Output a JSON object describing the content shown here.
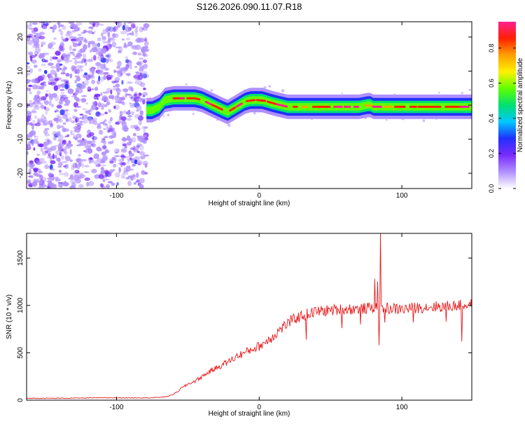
{
  "page_title": "S126.2026.090.11.07.R18",
  "chart_data": [
    {
      "type": "heatmap",
      "name": "spectrogram",
      "xlabel": "Height of straight line (km)",
      "ylabel": "Frequency (Hz)",
      "xlim": [
        -163,
        149
      ],
      "ylim": [
        -24.5,
        24.5
      ],
      "x_ticks": [
        -100,
        0,
        100
      ],
      "y_ticks": [
        -20,
        -10,
        0,
        10,
        20
      ],
      "noise_region": {
        "x_from": -163,
        "x_to": -79,
        "amplitude_range": [
          0.05,
          0.3
        ]
      },
      "signal_region_x_from": -79,
      "signal_track": {
        "x": [
          -79,
          -75,
          -70,
          -66,
          -60,
          -55,
          -50,
          -45,
          -40,
          -35,
          -30,
          -25,
          -22,
          -18,
          -14,
          -10,
          -6,
          -2,
          2,
          6,
          10,
          15,
          20,
          30,
          40,
          50,
          60,
          70,
          76,
          78,
          80,
          90,
          100,
          110,
          120,
          130,
          140,
          149
        ],
        "y": [
          -1.5,
          -1.5,
          -0.5,
          1.5,
          2.0,
          2.0,
          2.0,
          2.0,
          1.5,
          0.5,
          -0.5,
          -1.5,
          -2.0,
          -1.0,
          0.0,
          1.0,
          1.5,
          1.5,
          1.5,
          1.0,
          0.5,
          0.0,
          -0.5,
          -0.5,
          -0.5,
          -0.5,
          -0.5,
          -0.5,
          0.0,
          0.0,
          -0.5,
          -0.5,
          -0.5,
          -0.5,
          -0.5,
          -0.5,
          -0.5,
          -0.5
        ]
      },
      "colorbar": {
        "label": "Normalized spectral amplitude",
        "range": [
          0.0,
          0.95
        ],
        "ticks": [
          0.0,
          0.2,
          0.4,
          0.6,
          0.8
        ],
        "tick_labels": [
          "0.0",
          "0.2",
          "0.4",
          "0.6",
          "0.8"
        ],
        "colors": [
          "#ffffff",
          "#b090ff",
          "#7a2cff",
          "#2030ff",
          "#00c8ff",
          "#00e070",
          "#60ff00",
          "#fff000",
          "#ffa000",
          "#ff2000",
          "#ff2090"
        ]
      }
    },
    {
      "type": "line",
      "name": "snr",
      "xlabel": "Height of straight line (km)",
      "ylabel": "SNR (10 * v/v)",
      "xlim": [
        -163,
        149
      ],
      "ylim": [
        0,
        1760
      ],
      "x_ticks": [
        -100,
        0,
        100
      ],
      "y_ticks": [
        0,
        500,
        1000,
        1500
      ],
      "series": [
        {
          "color": "#e8191a",
          "x": [
            -163,
            -140,
            -110,
            -90,
            -75,
            -70,
            -66,
            -62,
            -58,
            -55,
            -50,
            -45,
            -40,
            -35,
            -30,
            -25,
            -20,
            -15,
            -10,
            -5,
            0,
            5,
            10,
            15,
            20,
            25,
            30,
            35,
            40,
            50,
            60,
            70,
            76,
            80,
            85,
            90,
            100,
            110,
            120,
            130,
            140,
            149
          ],
          "y": [
            20,
            20,
            25,
            25,
            25,
            30,
            35,
            50,
            80,
            120,
            170,
            200,
            250,
            300,
            340,
            380,
            420,
            470,
            500,
            540,
            570,
            620,
            680,
            750,
            810,
            860,
            890,
            915,
            935,
            950,
            960,
            965,
            970,
            975,
            975,
            970,
            960,
            975,
            985,
            990,
            1000,
            1010
          ]
        }
      ],
      "spikes": [
        {
          "x": 33,
          "y": 640
        },
        {
          "x": 58,
          "y": 760
        },
        {
          "x": 71,
          "y": 800
        },
        {
          "x": 81,
          "y": 1280
        },
        {
          "x": 83,
          "y": 1250
        },
        {
          "x": 84,
          "y": 580
        },
        {
          "x": 85,
          "y": 1760
        },
        {
          "x": 88,
          "y": 820
        },
        {
          "x": 108,
          "y": 820
        },
        {
          "x": 131,
          "y": 830
        },
        {
          "x": 142,
          "y": 620
        }
      ]
    }
  ]
}
